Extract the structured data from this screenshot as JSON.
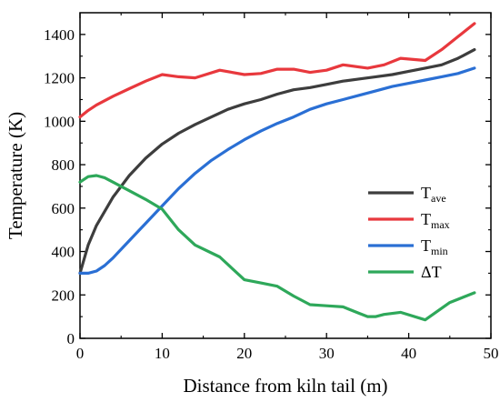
{
  "chart_data": {
    "type": "line",
    "xlabel": "Distance from kiln tail (m)",
    "ylabel": "Temperature (K)",
    "xlim": [
      0,
      50
    ],
    "ylim": [
      0,
      1500
    ],
    "xticks": [
      0,
      10,
      20,
      30,
      40,
      50
    ],
    "yticks": [
      0,
      200,
      400,
      600,
      800,
      1000,
      1200,
      1400
    ],
    "grid": false,
    "legend": "right",
    "series": [
      {
        "name": "Tave",
        "base": "T",
        "sub": "ave",
        "color": "#3d3d3d",
        "x": [
          0,
          1,
          2,
          4,
          6,
          8,
          10,
          12,
          14,
          16,
          18,
          20,
          22,
          24,
          26,
          28,
          30,
          32,
          34,
          36,
          38,
          40,
          42,
          44,
          46,
          48
        ],
        "y": [
          300,
          430,
          520,
          650,
          750,
          830,
          895,
          945,
          985,
          1020,
          1055,
          1080,
          1100,
          1125,
          1145,
          1155,
          1170,
          1185,
          1195,
          1205,
          1215,
          1230,
          1245,
          1260,
          1290,
          1330
        ]
      },
      {
        "name": "Tmax",
        "base": "T",
        "sub": "max",
        "color": "#e8383d",
        "x": [
          0,
          1,
          2,
          4,
          6,
          8,
          10,
          12,
          14,
          17,
          20,
          22,
          24,
          26,
          28,
          30,
          32,
          35,
          37,
          39,
          42,
          44,
          46,
          48
        ],
        "y": [
          1020,
          1050,
          1075,
          1115,
          1150,
          1185,
          1215,
          1205,
          1200,
          1235,
          1215,
          1220,
          1240,
          1240,
          1225,
          1235,
          1260,
          1245,
          1260,
          1290,
          1280,
          1330,
          1390,
          1450
        ]
      },
      {
        "name": "Tmin",
        "base": "T",
        "sub": "min",
        "color": "#2a6fd4",
        "x": [
          0,
          1,
          2,
          3,
          4,
          6,
          8,
          10,
          12,
          14,
          16,
          18,
          20,
          22,
          24,
          26,
          28,
          30,
          32,
          34,
          36,
          38,
          40,
          42,
          44,
          46,
          48
        ],
        "y": [
          300,
          300,
          310,
          335,
          370,
          450,
          530,
          610,
          690,
          760,
          820,
          870,
          915,
          955,
          990,
          1020,
          1055,
          1080,
          1100,
          1120,
          1140,
          1160,
          1175,
          1190,
          1205,
          1220,
          1245
        ]
      },
      {
        "name": "ΔT",
        "base": "ΔT",
        "sub": "",
        "color": "#2ea85a",
        "x": [
          0,
          1,
          2,
          3,
          4,
          6,
          8,
          10,
          12,
          14,
          17,
          20,
          22,
          24,
          26,
          28,
          30,
          32,
          34,
          35,
          36,
          37,
          39,
          42,
          45,
          48
        ],
        "y": [
          720,
          745,
          750,
          740,
          720,
          680,
          640,
          595,
          500,
          430,
          375,
          270,
          255,
          240,
          195,
          155,
          150,
          145,
          115,
          100,
          100,
          110,
          120,
          85,
          165,
          210
        ]
      }
    ]
  }
}
